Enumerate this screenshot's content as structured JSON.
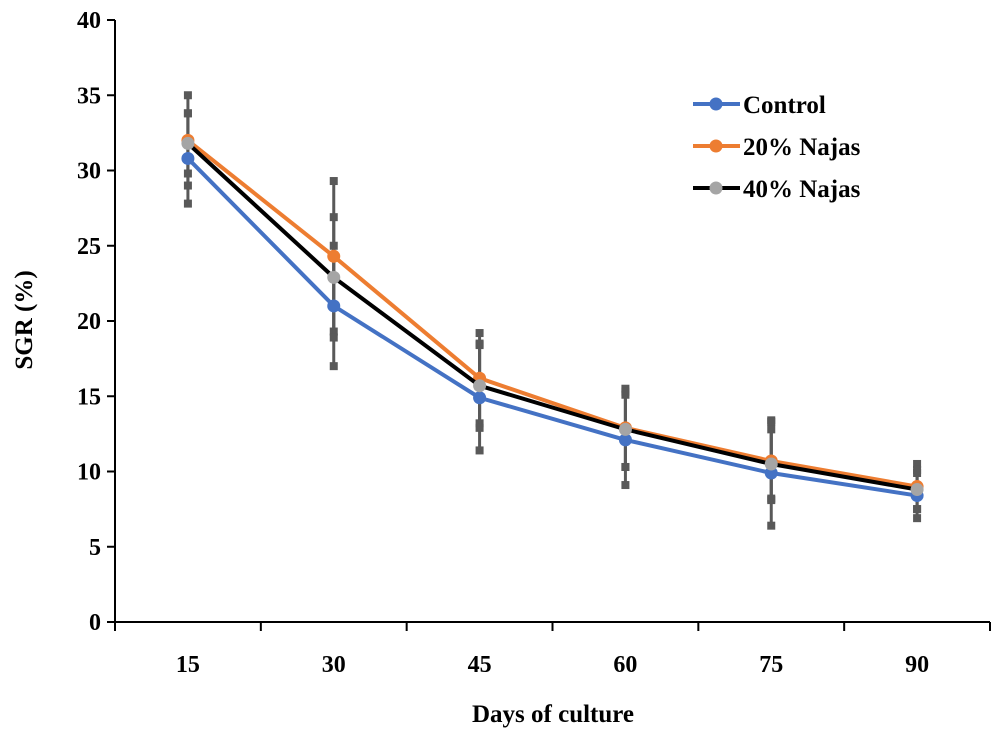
{
  "chart_data": {
    "type": "line",
    "title": "",
    "xlabel": "Days of culture",
    "ylabel": "SGR (%)",
    "x": [
      15,
      30,
      45,
      60,
      75,
      90
    ],
    "categories": [
      "15",
      "30",
      "45",
      "60",
      "75",
      "90"
    ],
    "ylim": [
      0,
      40
    ],
    "yticks": [
      0,
      5,
      10,
      15,
      20,
      25,
      30,
      35,
      40
    ],
    "ytick_labels": [
      "0",
      "5",
      "10",
      "15",
      "20",
      "25",
      "30",
      "35",
      "40"
    ],
    "grid": false,
    "legend_position": "top-right",
    "series": [
      {
        "name": "Control",
        "color": "#4472C4",
        "values": [
          30.8,
          21.0,
          14.9,
          12.1,
          9.9,
          8.4
        ],
        "error": [
          3.0,
          4.0,
          3.5,
          3.0,
          3.5,
          1.5
        ]
      },
      {
        "name": "20% Najas",
        "color": "#ED7D31",
        "values": [
          32.0,
          24.3,
          16.2,
          12.9,
          10.7,
          9.0
        ],
        "error": [
          3.0,
          5.0,
          3.0,
          2.6,
          2.6,
          1.5
        ]
      },
      {
        "name": "40% Najas",
        "color": "#A5A5A5",
        "line_color": "#000000",
        "values": [
          31.8,
          22.9,
          15.7,
          12.8,
          10.5,
          8.8
        ],
        "error": [
          2.0,
          4.0,
          2.8,
          2.5,
          2.3,
          1.3
        ]
      }
    ]
  }
}
